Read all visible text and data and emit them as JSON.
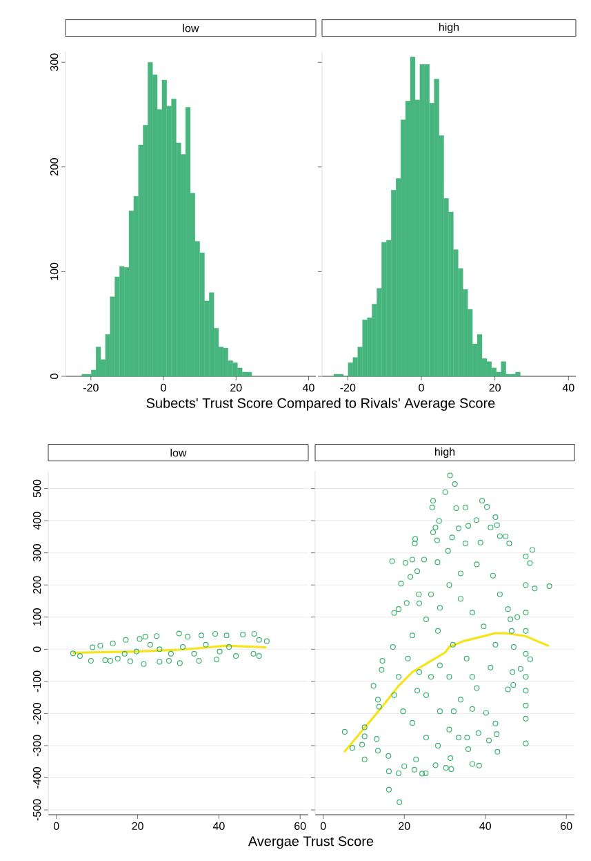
{
  "chart_data": [
    {
      "type": "histogram",
      "title": "low",
      "xlabel": "Subects' Trust Score Compared to Rivals' Average Score",
      "color": "#48b57f",
      "xlim": [
        -27,
        42
      ],
      "xticks": [
        -20,
        0,
        20,
        40
      ],
      "ylim": [
        0,
        310
      ],
      "yticks": [
        0,
        100,
        200,
        300
      ],
      "bins": [
        -22.5,
        -21.2,
        -19.9,
        -18.6,
        -17.3,
        -16.0,
        -14.7,
        -13.4,
        -12.1,
        -10.8,
        -9.5,
        -8.2,
        -6.9,
        -5.6,
        -4.3,
        -3.0,
        -1.7,
        -0.4,
        0.9,
        2.2,
        3.5,
        4.8,
        6.1,
        7.4,
        8.7,
        10.0,
        11.3,
        12.6,
        13.9,
        15.2,
        16.5,
        17.8,
        19.1,
        20.4,
        21.7,
        23.0,
        24.3
      ],
      "values": [
        2,
        2,
        6,
        28,
        16,
        40,
        76,
        95,
        105,
        104,
        158,
        172,
        221,
        240,
        300,
        288,
        255,
        283,
        258,
        265,
        223,
        212,
        257,
        175,
        129,
        118,
        72,
        80,
        46,
        28,
        27,
        15,
        13,
        8,
        4,
        4
      ]
    },
    {
      "type": "histogram",
      "title": "high",
      "color": "#48b57f",
      "xlim": [
        -27,
        42
      ],
      "xticks": [
        -20,
        0,
        20,
        40
      ],
      "ylim": [
        0,
        310
      ],
      "yticks": [
        0,
        100,
        200,
        300
      ],
      "tick_labels": "x",
      "bins": [
        -23.8,
        -22.5,
        -21.2,
        -19.9,
        -18.6,
        -17.3,
        -16.0,
        -14.7,
        -13.4,
        -12.1,
        -10.8,
        -9.5,
        -8.2,
        -6.9,
        -5.6,
        -4.3,
        -3.0,
        -1.7,
        -0.4,
        0.9,
        2.2,
        3.5,
        4.8,
        6.1,
        7.4,
        8.7,
        10.0,
        11.3,
        12.6,
        13.9,
        15.2,
        16.5,
        17.8,
        19.1,
        20.4,
        21.7,
        23.0,
        24.3,
        25.6,
        26.9
      ],
      "values": [
        2,
        2,
        0,
        13,
        18,
        28,
        54,
        56,
        69,
        84,
        128,
        130,
        178,
        189,
        245,
        263,
        305,
        264,
        298,
        298,
        261,
        284,
        230,
        170,
        157,
        121,
        103,
        83,
        64,
        31,
        40,
        17,
        14,
        8,
        4,
        14,
        2,
        2,
        4
      ]
    },
    {
      "type": "scatter",
      "title": "low",
      "xlabel": "Avergae Trust Score",
      "xlim": [
        -2,
        62
      ],
      "xticks": [
        0,
        20,
        40,
        60
      ],
      "ylim": [
        -515,
        555
      ],
      "yticks": [
        -500,
        -400,
        -300,
        -200,
        -100,
        0,
        100,
        200,
        300,
        400,
        500
      ],
      "grid": "y",
      "series": [
        {
          "type": "scatter",
          "marker": "circle",
          "color": "#3cb371",
          "x": [
            4.1,
            5.8,
            8.5,
            8.9,
            10.8,
            12.0,
            13.3,
            13.9,
            17.1,
            15.1,
            18.2,
            20.5,
            21.5,
            21.9,
            24.7,
            25.4,
            27.7,
            30.2,
            30.4,
            32.3,
            35.1,
            35.7,
            39.1,
            39.4,
            41.9,
            44.2,
            45.9,
            48.7,
            48.5,
            49.9,
            49.9,
            51.8,
            19.7,
            25.4,
            31.1,
            36.8,
            42.5,
            23.1,
            28.2,
            33.9,
            40.2,
            16.8
          ],
          "values": [
            -13,
            -21,
            -36,
            6,
            11,
            -34,
            -36,
            18,
            29,
            -29,
            -37,
            32,
            -46,
            39,
            41,
            -39,
            -36,
            49,
            -43,
            39,
            -36,
            43,
            48,
            -32,
            43,
            -21,
            46,
            48,
            -14,
            -21,
            29,
            25,
            -7,
            0,
            7,
            14,
            7,
            14,
            -14,
            -14,
            -7,
            -14
          ]
        },
        {
          "type": "line",
          "marker": "none",
          "color": "#f5e41c",
          "x": [
            4.2,
            19.7,
            31.1,
            41.9,
            51.5
          ],
          "values": [
            -11,
            -7,
            -1,
            11,
            6
          ]
        }
      ]
    },
    {
      "type": "scatter",
      "title": "high",
      "xlim": [
        -2,
        62
      ],
      "xticks": [
        0,
        20,
        40,
        60
      ],
      "ylim": [
        -515,
        555
      ],
      "yticks": [
        -500,
        -400,
        -300,
        -200,
        -100,
        0,
        100,
        200,
        300,
        400,
        500
      ],
      "grid": "y",
      "tick_labels": "x",
      "series": [
        {
          "type": "scatter",
          "marker": "circle",
          "color": "#3cb371",
          "x": [
            31.3,
            32.5,
            30.1,
            27.1,
            26.9,
            39.2,
            40.4,
            35.1,
            32.8,
            42.5,
            37.8,
            28.6,
            35.8,
            33.4,
            27.7,
            27.1,
            42.9,
            41.3,
            43.6,
            45.0,
            22.7,
            22.6,
            28.1,
            31.8,
            35.1,
            38.8,
            45.9,
            51.6,
            30.8,
            17.0,
            22.0,
            20.3,
            24.9,
            28.2,
            50.0,
            51.0,
            19.2,
            21.5,
            23.2,
            55.8,
            52.2,
            50.0,
            20.6,
            17.5,
            18.6,
            23.6,
            23.7,
            45.6,
            47.9,
            50.0,
            50.0,
            50.0,
            50.0,
            50.0,
            50.0,
            50.0,
            50.0,
            51.1,
            17.2,
            14.6,
            14.4,
            12.4,
            13.5,
            13.8,
            5.3,
            7.2,
            10.2,
            10.2,
            9.6,
            10.2,
            13.5,
            13.2,
            16.1,
            16.2,
            16.2,
            18.8,
            18.6,
            20.0,
            22.9,
            22.5,
            24.4,
            25.3,
            27.7,
            30.3,
            31.6,
            31.4,
            36.8,
            38.5,
            43.0,
            35.8,
            42.8,
            40.9,
            42.5,
            38.3,
            35.5,
            33.4,
            28.3,
            25.4,
            40.2,
            45.6,
            46.9,
            46.7,
            48.7,
            47.0,
            46.5,
            46.2,
            22.0,
            19.7,
            17.5,
            18.6,
            20.9,
            22.0,
            25.4,
            26.6,
            31.1,
            33.9,
            36.8,
            39.6,
            42.5,
            41.3,
            37.9,
            33.9,
            28.8,
            25.4,
            23.7,
            28.8,
            32.0,
            35.4,
            28.3,
            33.9,
            37.9,
            41.9,
            43.6,
            28.8,
            31.1,
            36.8,
            26.6,
            23.2,
            32.2,
            36.8,
            31.1
          ],
          "values": [
            541,
            514,
            489,
            462,
            441,
            462,
            443,
            441,
            439,
            411,
            402,
            399,
            384,
            376,
            379,
            364,
            386,
            379,
            352,
            351,
            343,
            329,
            339,
            348,
            329,
            332,
            329,
            309,
            306,
            274,
            279,
            269,
            279,
            271,
            289,
            268,
            204,
            225,
            243,
            196,
            189,
            200,
            144,
            113,
            125,
            171,
            143,
            125,
            100,
            114,
            57,
            -14,
            -86,
            -129,
            -175,
            -216,
            -293,
            -31,
            7,
            -36,
            -64,
            -114,
            -157,
            -179,
            -257,
            -307,
            -243,
            -271,
            -297,
            -343,
            -316,
            -279,
            -332,
            -380,
            -437,
            -476,
            -386,
            -364,
            -343,
            -375,
            -387,
            -386,
            -361,
            -369,
            -373,
            -339,
            -357,
            -362,
            -319,
            -311,
            -264,
            -284,
            -231,
            -261,
            -275,
            -275,
            -300,
            -275,
            -198,
            -125,
            -111,
            -71,
            -61,
            7,
            57,
            93,
            -229,
            -193,
            -143,
            -86,
            -29,
            43,
            93,
            171,
            200,
            157,
            114,
            71,
            14,
            -57,
            -121,
            -157,
            -193,
            -143,
            -71,
            -50,
            14,
            -29,
            57,
            236,
            264,
            229,
            171,
            129,
            -86,
            -86,
            -86,
            -129,
            -193,
            -186,
            -250
          ]
        },
        {
          "type": "line",
          "marker": "none",
          "color": "#f5e41c",
          "x": [
            5.3,
            10.1,
            14.1,
            18.6,
            22.0,
            26.6,
            30.0,
            31.1,
            34.5,
            39.1,
            42.5,
            44.7,
            49.9,
            55.5
          ],
          "values": [
            -318,
            -246,
            -186,
            -114,
            -71,
            -36,
            -11,
            7,
            25,
            39,
            50,
            50,
            41,
            11
          ]
        }
      ]
    }
  ]
}
